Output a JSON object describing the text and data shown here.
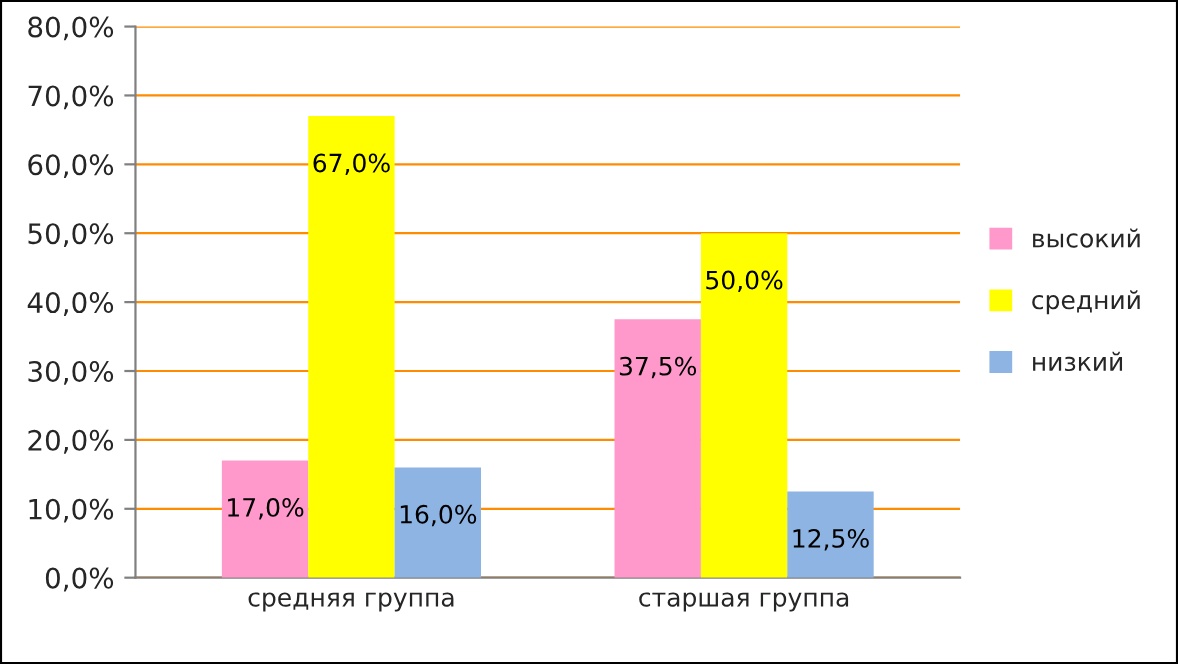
{
  "chart_data": {
    "type": "bar",
    "categories": [
      "средняя группа",
      "старшая группа"
    ],
    "series": [
      {
        "name": "высокий",
        "color": "#ff99cc",
        "values": [
          17.0,
          37.5
        ],
        "value_labels": [
          "17,0%",
          "37,5%"
        ]
      },
      {
        "name": "средний",
        "color": "#ffff00",
        "values": [
          67.0,
          50.0
        ],
        "value_labels": [
          "67,0%",
          "50,0%"
        ]
      },
      {
        "name": "низкий",
        "color": "#8db4e2",
        "values": [
          16.0,
          12.5
        ],
        "value_labels": [
          "16,0%",
          "12,5%"
        ]
      }
    ],
    "ylim": [
      0,
      80
    ],
    "yticks": [
      {
        "value": 0,
        "label": "0,0%"
      },
      {
        "value": 10,
        "label": "10,0%"
      },
      {
        "value": 20,
        "label": "20,0%"
      },
      {
        "value": 30,
        "label": "30,0%"
      },
      {
        "value": 40,
        "label": "40,0%"
      },
      {
        "value": 50,
        "label": "50,0%"
      },
      {
        "value": 60,
        "label": "60,0%"
      },
      {
        "value": 70,
        "label": "70,0%"
      },
      {
        "value": 80,
        "label": "80,0%"
      }
    ],
    "grid": "y",
    "legend": "right"
  }
}
